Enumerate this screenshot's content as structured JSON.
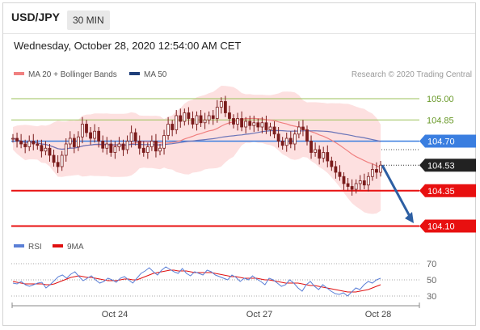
{
  "header": {
    "symbol": "USD/JPY",
    "timeframe": "30 MIN",
    "datetime": "Wednesday, October 28, 2020 12:54:00 AM CET"
  },
  "legend": {
    "ma20_label": "MA 20 + Bollinger Bands",
    "ma50_label": "MA 50",
    "ma20_color": "#f08080",
    "ma50_color": "#1f3f7a",
    "copyright": "Research © 2020 Trading Central"
  },
  "rsi_legend": {
    "rsi_label": "RSI",
    "ma_label": "9MA",
    "rsi_color": "#5b7fd6",
    "ma_color": "#e01010"
  },
  "colors": {
    "green_level": "#9bc25a",
    "blue_level": "#3a7ee0",
    "red_level": "#e81010",
    "current_badge": "#222222",
    "candle": "#7a1c1c",
    "band_fill": "#fde0e0",
    "arrow": "#2d5fa3"
  },
  "chart_data": [
    {
      "type": "candlestick",
      "title": "USD/JPY",
      "ylim": [
        104.04,
        105.08
      ],
      "x_ticks": [
        "Oct 24",
        "Oct 27",
        "Oct 28"
      ],
      "levels": [
        {
          "value": 105.0,
          "label": "105.00",
          "style": "green"
        },
        {
          "value": 104.85,
          "label": "104.85",
          "style": "green"
        },
        {
          "value": 104.7,
          "label": "104.70",
          "style": "blue"
        },
        {
          "value": 104.53,
          "label": "104.53",
          "style": "current"
        },
        {
          "value": 104.35,
          "label": "104.35",
          "style": "red"
        },
        {
          "value": 104.1,
          "label": "104.10",
          "style": "red"
        }
      ],
      "close": [
        104.72,
        104.7,
        104.68,
        104.66,
        104.7,
        104.68,
        104.67,
        104.63,
        104.65,
        104.6,
        104.55,
        104.52,
        104.6,
        104.68,
        104.72,
        104.66,
        104.73,
        104.82,
        104.76,
        104.72,
        104.77,
        104.7,
        104.65,
        104.68,
        104.62,
        104.66,
        104.68,
        104.64,
        104.7,
        104.76,
        104.7,
        104.65,
        104.62,
        104.66,
        104.7,
        104.63,
        104.65,
        104.74,
        104.82,
        104.78,
        104.88,
        104.84,
        104.9,
        104.86,
        104.82,
        104.88,
        104.83,
        104.85,
        104.88,
        104.86,
        104.94,
        104.98,
        104.9,
        104.86,
        104.82,
        104.86,
        104.8,
        104.84,
        104.81,
        104.83,
        104.8,
        104.83,
        104.78,
        104.8,
        104.75,
        104.7,
        104.67,
        104.72,
        104.68,
        104.75,
        104.8,
        104.78,
        104.7,
        104.62,
        104.64,
        104.58,
        104.62,
        104.56,
        104.52,
        104.48,
        104.45,
        104.4,
        104.38,
        104.36,
        104.4,
        104.42,
        104.39,
        104.45,
        104.5,
        104.48,
        104.53
      ],
      "ma20_start": [
        104.68,
        104.6
      ],
      "ma50_start": [
        104.66,
        104.72
      ],
      "rsi": {
        "levels": [
          70,
          50,
          30
        ],
        "ylim": [
          20,
          80
        ],
        "rsi_values": [
          46,
          45,
          48,
          44,
          42,
          44,
          46,
          47,
          40,
          44,
          49,
          54,
          56,
          52,
          57,
          60,
          54,
          49,
          52,
          55,
          50,
          46,
          48,
          52,
          50,
          47,
          52,
          54,
          50,
          46,
          52,
          58,
          61,
          65,
          60,
          56,
          62,
          66,
          63,
          60,
          58,
          64,
          58,
          55,
          60,
          58,
          56,
          62,
          60,
          56,
          54,
          52,
          50,
          56,
          53,
          48,
          52,
          50,
          55,
          51,
          48,
          44,
          52,
          50,
          46,
          42,
          44,
          50,
          46,
          40,
          36,
          44,
          48,
          42,
          38,
          44,
          40,
          36,
          33,
          32,
          34,
          30,
          35,
          40,
          38,
          44,
          48,
          46,
          50,
          52
        ],
        "ma_values": [
          48,
          47,
          46,
          45,
          45,
          45,
          45,
          45,
          44,
          44,
          45,
          47,
          49,
          51,
          53,
          54,
          55,
          54,
          53,
          53,
          52,
          51,
          50,
          49,
          49,
          49,
          50,
          51,
          51,
          50,
          50,
          52,
          54,
          56,
          58,
          59,
          60,
          61,
          62,
          62,
          61,
          61,
          61,
          60,
          59,
          59,
          59,
          59,
          59,
          58,
          57,
          56,
          55,
          54,
          54,
          53,
          52,
          52,
          52,
          52,
          51,
          50,
          50,
          49,
          48,
          47,
          46,
          46,
          46,
          46,
          45,
          44,
          43,
          43,
          42,
          41,
          40,
          39,
          38,
          37,
          36,
          35,
          35,
          35,
          36,
          37,
          38,
          40,
          42,
          44
        ]
      }
    }
  ]
}
